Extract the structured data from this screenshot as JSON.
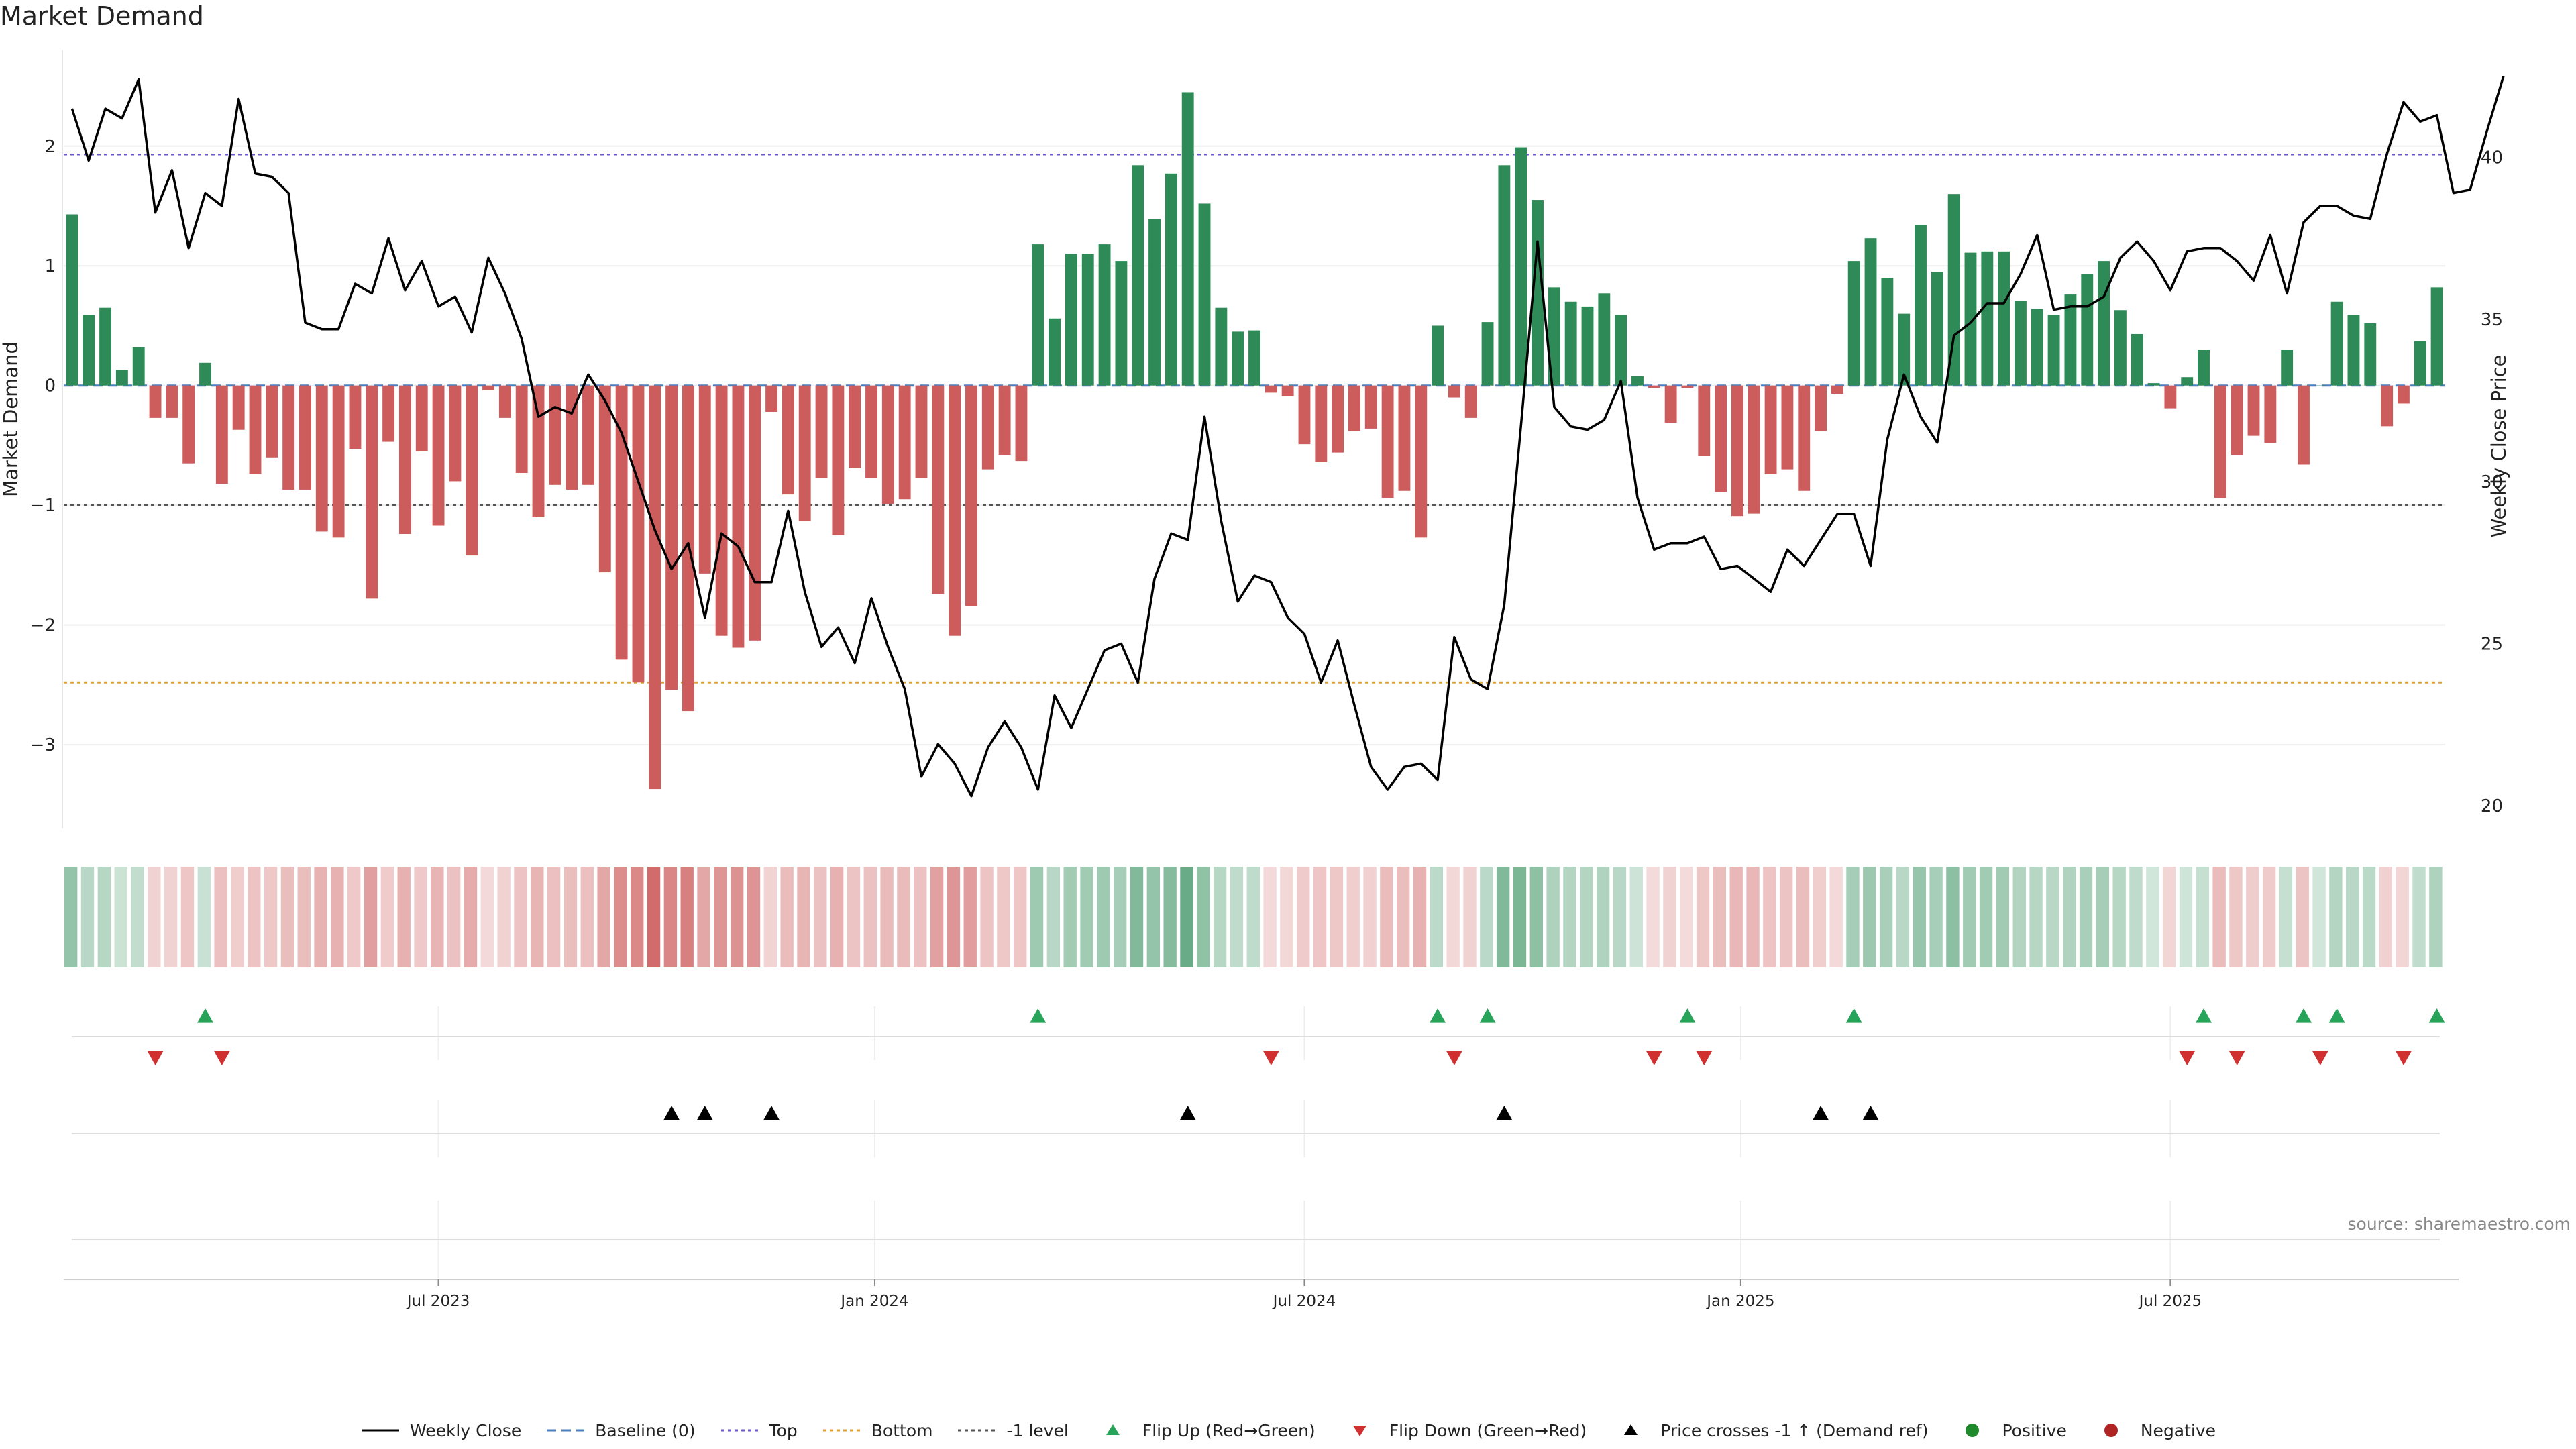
{
  "title": "Market Demand",
  "source": "source: sharemaestro.com",
  "colors": {
    "green": "#2e8b57",
    "red": "#cd5c5c",
    "line": "#000000",
    "top": "#6a5acd",
    "bottom": "#e0a030",
    "minus1": "#555555",
    "up": "#27a35a",
    "down": "#d03030",
    "cross": "#000000"
  },
  "legend": [
    {
      "key": "close",
      "label": "Weekly Close"
    },
    {
      "key": "baseline",
      "label": "Baseline (0)"
    },
    {
      "key": "top",
      "label": "Top"
    },
    {
      "key": "bottom",
      "label": "Bottom"
    },
    {
      "key": "minus1",
      "label": "-1 level"
    },
    {
      "key": "flipup",
      "label": "Flip Up (Red→Green)"
    },
    {
      "key": "flipdown",
      "label": "Flip Down (Green→Red)"
    },
    {
      "key": "cross",
      "label": "Price crosses -1 ↑ (Demand ref)"
    },
    {
      "key": "pos",
      "label": "Positive"
    },
    {
      "key": "neg",
      "label": "Negative"
    }
  ],
  "chart_data": {
    "type": "bar",
    "title": "Market Demand",
    "ylabel": "Market Demand",
    "y2label": "Weekly Close Price",
    "ylim": [
      -3.7,
      2.8
    ],
    "y2lim": [
      19.3,
      43.3
    ],
    "yticks": [
      2,
      1,
      0,
      -1,
      -2,
      -3
    ],
    "yticklabels": [
      "2",
      "1",
      "0",
      "−1",
      "−2",
      "−3"
    ],
    "y2ticks": [
      40,
      35,
      30,
      25,
      20
    ],
    "y2ticklabels": [
      "40",
      "35",
      "30",
      "25",
      "20"
    ],
    "hlines": {
      "top": 1.93,
      "baseline": 0,
      "minus1": -1,
      "bottom": -2.48
    },
    "xticks": [
      {
        "index": 22,
        "label": "Jul 2023"
      },
      {
        "index": 48.2,
        "label": "Jan 2024"
      },
      {
        "index": 74,
        "label": "Jul 2024"
      },
      {
        "index": 100.2,
        "label": "Jan 2025"
      },
      {
        "index": 126,
        "label": "Jul 2025"
      }
    ],
    "demand": [
      1.43,
      0.59,
      0.65,
      0.13,
      0.32,
      -0.27,
      -0.27,
      -0.65,
      0.19,
      -0.82,
      -0.37,
      -0.74,
      -0.6,
      -0.87,
      -0.87,
      -1.22,
      -1.27,
      -0.53,
      -1.78,
      -0.47,
      -1.24,
      -0.55,
      -1.17,
      -0.8,
      -1.42,
      -0.04,
      -0.27,
      -0.73,
      -1.1,
      -0.83,
      -0.87,
      -0.83,
      -1.56,
      -2.29,
      -2.48,
      -3.37,
      -2.54,
      -2.72,
      -1.57,
      -2.09,
      -2.19,
      -2.13,
      -0.22,
      -0.91,
      -1.13,
      -0.77,
      -1.25,
      -0.69,
      -0.77,
      -0.99,
      -0.95,
      -0.77,
      -1.74,
      -2.09,
      -1.84,
      -0.7,
      -0.58,
      -0.63,
      1.18,
      0.56,
      1.1,
      1.1,
      1.18,
      1.04,
      1.84,
      1.39,
      1.77,
      2.45,
      1.52,
      0.65,
      0.45,
      0.46,
      -0.06,
      -0.09,
      -0.49,
      -0.64,
      -0.56,
      -0.38,
      -0.36,
      -0.94,
      -0.88,
      -1.27,
      0.5,
      -0.1,
      -0.27,
      0.53,
      1.84,
      1.99,
      1.55,
      0.82,
      0.7,
      0.66,
      0.77,
      0.59,
      0.08,
      -0.02,
      -0.31,
      -0.02,
      -0.59,
      -0.89,
      -1.09,
      -1.07,
      -0.74,
      -0.7,
      -0.88,
      -0.38,
      -0.07,
      1.04,
      1.23,
      0.9,
      0.6,
      1.34,
      0.95,
      1.6,
      1.11,
      1.12,
      1.12,
      0.71,
      0.64,
      0.59,
      0.76,
      0.93,
      1.04,
      0.63,
      0.43,
      0.02,
      -0.19,
      0.07,
      0.3,
      -0.94,
      -0.58,
      -0.42,
      -0.48,
      0.3,
      -0.66,
      0.0,
      0.7,
      0.59,
      0.52,
      -0.34,
      -0.15,
      0.37,
      0.82
    ],
    "close": [
      41.5,
      39.9,
      41.5,
      41.2,
      42.4,
      38.3,
      39.6,
      37.2,
      38.9,
      38.5,
      41.8,
      39.5,
      39.4,
      38.9,
      34.9,
      34.7,
      34.7,
      36.1,
      35.8,
      37.5,
      35.9,
      36.8,
      35.4,
      35.7,
      34.6,
      36.9,
      35.8,
      34.4,
      32.0,
      32.3,
      32.1,
      33.3,
      32.5,
      31.5,
      30.0,
      28.5,
      27.3,
      28.1,
      25.8,
      28.4,
      28.0,
      26.9,
      26.9,
      29.1,
      26.6,
      24.9,
      25.5,
      24.4,
      26.4,
      24.9,
      23.6,
      20.9,
      21.9,
      21.3,
      20.3,
      21.8,
      22.6,
      21.8,
      20.5,
      23.4,
      22.4,
      23.6,
      24.8,
      25.0,
      23.8,
      27.0,
      28.4,
      28.2,
      32.0,
      28.8,
      26.3,
      27.1,
      26.9,
      25.8,
      25.3,
      23.8,
      25.1,
      23.1,
      21.2,
      20.5,
      21.2,
      21.3,
      20.8,
      25.2,
      23.9,
      23.6,
      26.2,
      31.7,
      37.4,
      32.3,
      31.7,
      31.6,
      31.9,
      33.1,
      29.5,
      27.9,
      28.1,
      28.1,
      28.3,
      27.3,
      27.4,
      27.0,
      26.6,
      27.9,
      27.4,
      28.2,
      29.0,
      29.0,
      27.4,
      31.3,
      33.3,
      32.0,
      31.2,
      34.5,
      34.9,
      35.5,
      35.5,
      36.4,
      37.6,
      35.3,
      35.4,
      35.4,
      35.7,
      36.9,
      37.4,
      36.8,
      35.9,
      37.1,
      37.2,
      37.2,
      36.8,
      36.2,
      37.6,
      35.8,
      38.0,
      38.5,
      38.5,
      38.2,
      38.1,
      40.1,
      41.7,
      41.1,
      41.3,
      38.9,
      39.0,
      40.8,
      42.5
    ],
    "flip_up": [
      8,
      58,
      82,
      85,
      97,
      107,
      128,
      134,
      136,
      142
    ],
    "flip_down": [
      5,
      9,
      72,
      83,
      95,
      98,
      127,
      130,
      135,
      140
    ],
    "cross_up": [
      36,
      38,
      42,
      67,
      86,
      105,
      108
    ]
  }
}
